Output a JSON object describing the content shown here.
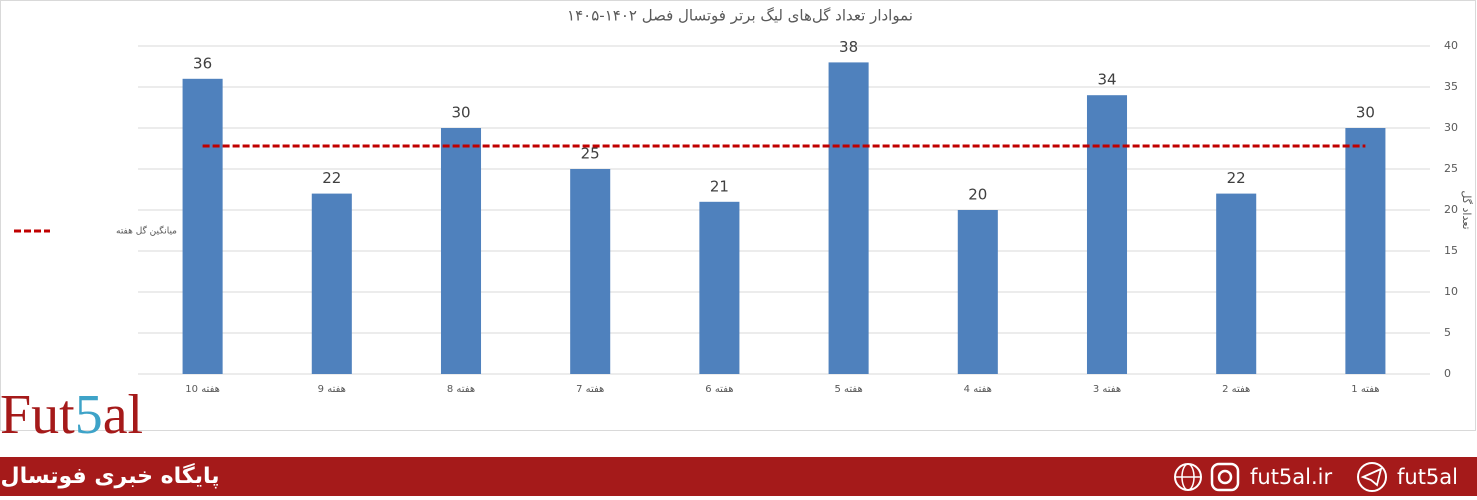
{
  "chart_data": {
    "type": "bar",
    "title": "نموادار تعداد گل‌های لیگ برتر فوتسال فصل ۱۴۰۲-۱۴۰۵",
    "y_axis_label": "تعداد گل",
    "categories": [
      "هفته 10",
      "هفته 9",
      "هفته 8",
      "هفته 7",
      "هفته 6",
      "هفته 5",
      "هفته 4",
      "هفته 3",
      "هفته 2",
      "هفته 1"
    ],
    "series": [
      {
        "type": "bar",
        "color": "#4f81bd",
        "values": [
          36,
          22,
          30,
          25,
          21,
          38,
          20,
          34,
          22,
          30
        ]
      },
      {
        "type": "line",
        "name": "میانگین گل هفته",
        "color": "#c00000",
        "values": [
          27.8,
          27.8,
          27.8,
          27.8,
          27.8,
          27.8,
          27.8,
          27.8,
          27.8,
          27.8
        ]
      }
    ],
    "ylim": [
      0,
      40
    ],
    "yticks": [
      0,
      5,
      10,
      15,
      20,
      25,
      30,
      35,
      40
    ],
    "y_axis_side": "right",
    "grid": true,
    "legend": "left"
  },
  "logo": [
    "Fut",
    "5",
    "al"
  ],
  "footer": {
    "tagline": "پایگاه خبری فوتسال",
    "website": "fut5al.ir",
    "telegram": "fut5al"
  }
}
